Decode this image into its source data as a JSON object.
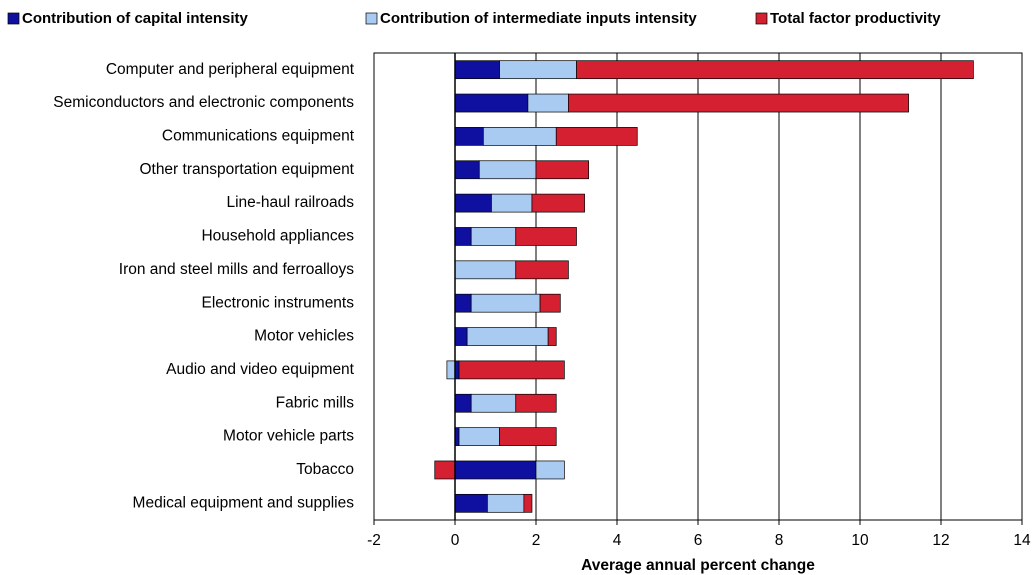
{
  "chart_data": {
    "type": "stacked-bar-horizontal",
    "x_label": "Average annual percent change",
    "categories": [
      "Computer and peripheral equipment",
      "Semiconductors and electronic components",
      "Communications equipment",
      "Other transportation equipment",
      "Line-haul railroads",
      "Household appliances",
      "Iron and steel mills and ferroalloys",
      "Electronic instruments",
      "Motor vehicles",
      "Audio and video equipment",
      "Fabric mills",
      "Motor vehicle parts",
      "Tobacco",
      "Medical equipment and supplies"
    ],
    "series": [
      {
        "name": "Contribution of capital intensity",
        "color": "#1010a0",
        "values": [
          1.1,
          1.8,
          0.7,
          0.6,
          0.9,
          0.4,
          0,
          0.4,
          0.3,
          0.1,
          0.4,
          0.1,
          2.0,
          0.8
        ]
      },
      {
        "name": "Contribution of intermediate inputs intensity",
        "color": "#a9cbf2",
        "values": [
          1.9,
          1.0,
          1.8,
          1.4,
          1.0,
          1.1,
          1.5,
          1.7,
          2.0,
          -0.2,
          1.1,
          1.0,
          0.7,
          0.9
        ]
      },
      {
        "name": "Total factor productivity",
        "color": "#d42030",
        "values": [
          9.8,
          8.4,
          2.0,
          1.3,
          1.3,
          1.5,
          1.3,
          0.5,
          0.2,
          2.6,
          1.0,
          1.4,
          -0.5,
          0.2
        ]
      }
    ],
    "xlim": [
      -2,
      14
    ],
    "xticks": [
      -2,
      0,
      2,
      4,
      6,
      8,
      10,
      12,
      14
    ],
    "grid": true
  }
}
